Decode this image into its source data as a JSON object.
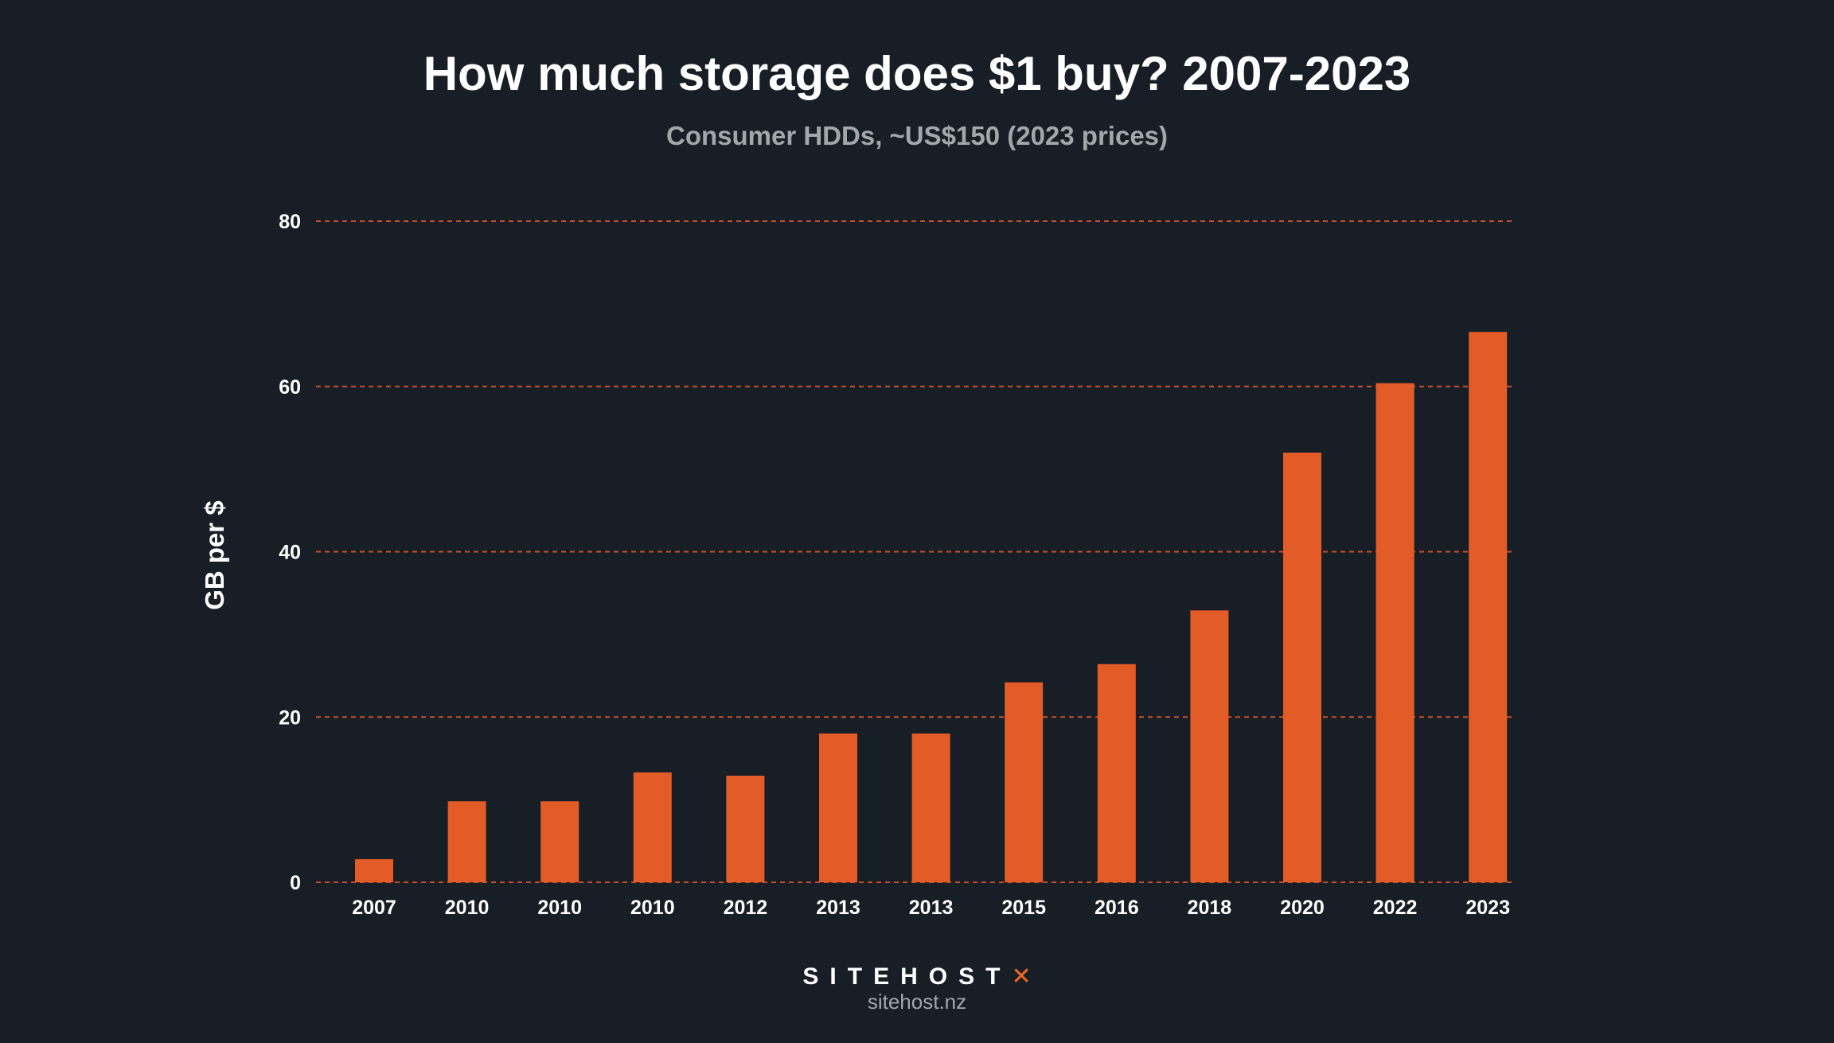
{
  "chart_data": {
    "type": "bar",
    "title": "How much storage does $1 buy? 2007-2023",
    "subtitle": "Consumer HDDs, ~US$150 (2023 prices)",
    "xlabel": "",
    "ylabel": "GB per $",
    "categories": [
      "2007",
      "2010",
      "2010",
      "2010",
      "2012",
      "2013",
      "2013",
      "2015",
      "2016",
      "2018",
      "2020",
      "2022",
      "2023"
    ],
    "values": [
      2.8,
      9.8,
      9.8,
      13.3,
      12.9,
      18.0,
      18.0,
      24.2,
      26.4,
      32.9,
      52.0,
      60.4,
      66.6
    ],
    "ylim": [
      0,
      80
    ],
    "yticks": [
      0,
      20,
      40,
      60,
      80
    ],
    "grid": true,
    "gridline_style": "dashed",
    "colors": {
      "bar": "#e35b27",
      "grid": "#c8502a",
      "background": "#181e26"
    }
  },
  "footer": {
    "logo_text": "SITEHOST",
    "url": "sitehost.nz"
  }
}
